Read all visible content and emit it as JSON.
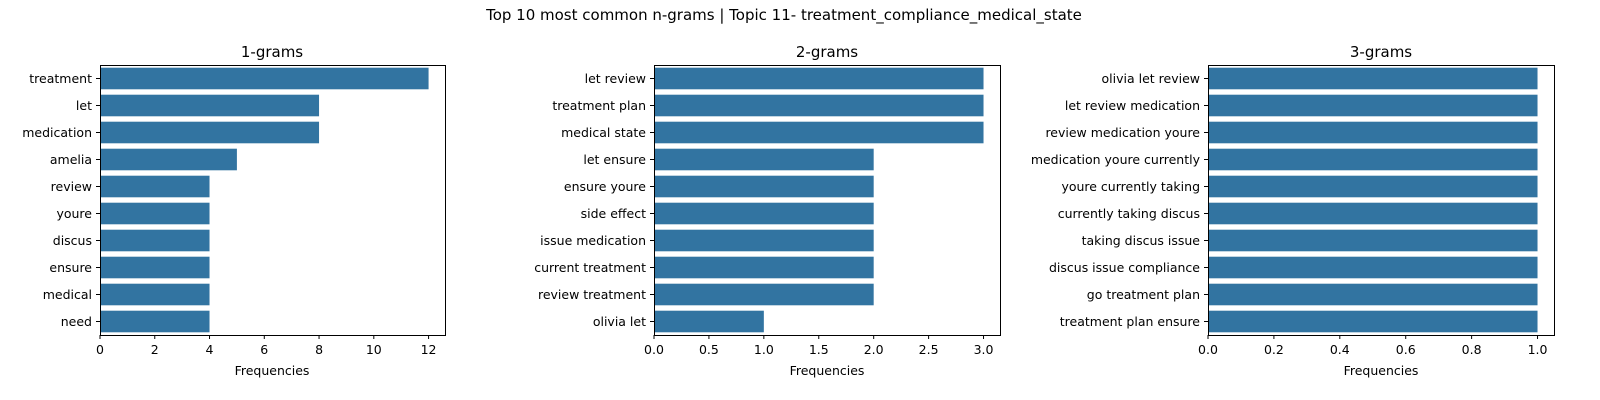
{
  "figure": {
    "title": "Top 10 most common n-grams | Topic 11- treatment_compliance_medical_state",
    "bar_color": "#3274a1"
  },
  "chart_data": [
    {
      "type": "bar",
      "orientation": "horizontal",
      "title": "1-grams",
      "xlabel": "Frequencies",
      "ylabel": "",
      "categories": [
        "treatment",
        "let",
        "medication",
        "amelia",
        "review",
        "youre",
        "discus",
        "ensure",
        "medical",
        "need"
      ],
      "values": [
        12,
        8,
        8,
        5,
        4,
        4,
        4,
        4,
        4,
        4
      ],
      "xlim": [
        0,
        12.6
      ],
      "xticks": [
        0,
        2,
        4,
        6,
        8,
        10,
        12
      ],
      "xtick_labels": [
        "0",
        "2",
        "4",
        "6",
        "8",
        "10",
        "12"
      ],
      "grid": false,
      "legend": "none"
    },
    {
      "type": "bar",
      "orientation": "horizontal",
      "title": "2-grams",
      "xlabel": "Frequencies",
      "ylabel": "",
      "categories": [
        "let review",
        "treatment plan",
        "medical state",
        "let ensure",
        "ensure youre",
        "side effect",
        "issue medication",
        "current treatment",
        "review treatment",
        "olivia let"
      ],
      "values": [
        3,
        3,
        3,
        2,
        2,
        2,
        2,
        2,
        2,
        1
      ],
      "xlim": [
        0,
        3.15
      ],
      "xticks": [
        0,
        0.5,
        1.0,
        1.5,
        2.0,
        2.5,
        3.0
      ],
      "xtick_labels": [
        "0.0",
        "0.5",
        "1.0",
        "1.5",
        "2.0",
        "2.5",
        "3.0"
      ],
      "grid": false,
      "legend": "none"
    },
    {
      "type": "bar",
      "orientation": "horizontal",
      "title": "3-grams",
      "xlabel": "Frequencies",
      "ylabel": "",
      "categories": [
        "olivia let review",
        "let review medication",
        "review medication youre",
        "medication youre currently",
        "youre currently taking",
        "currently taking discus",
        "taking discus issue",
        "discus issue compliance",
        "go treatment plan",
        "treatment plan ensure"
      ],
      "values": [
        1,
        1,
        1,
        1,
        1,
        1,
        1,
        1,
        1,
        1
      ],
      "xlim": [
        0,
        1.05
      ],
      "xticks": [
        0,
        0.2,
        0.4,
        0.6,
        0.8,
        1.0
      ],
      "xtick_labels": [
        "0.0",
        "0.2",
        "0.4",
        "0.6",
        "0.8",
        "1.0"
      ],
      "grid": false,
      "legend": "none"
    }
  ]
}
